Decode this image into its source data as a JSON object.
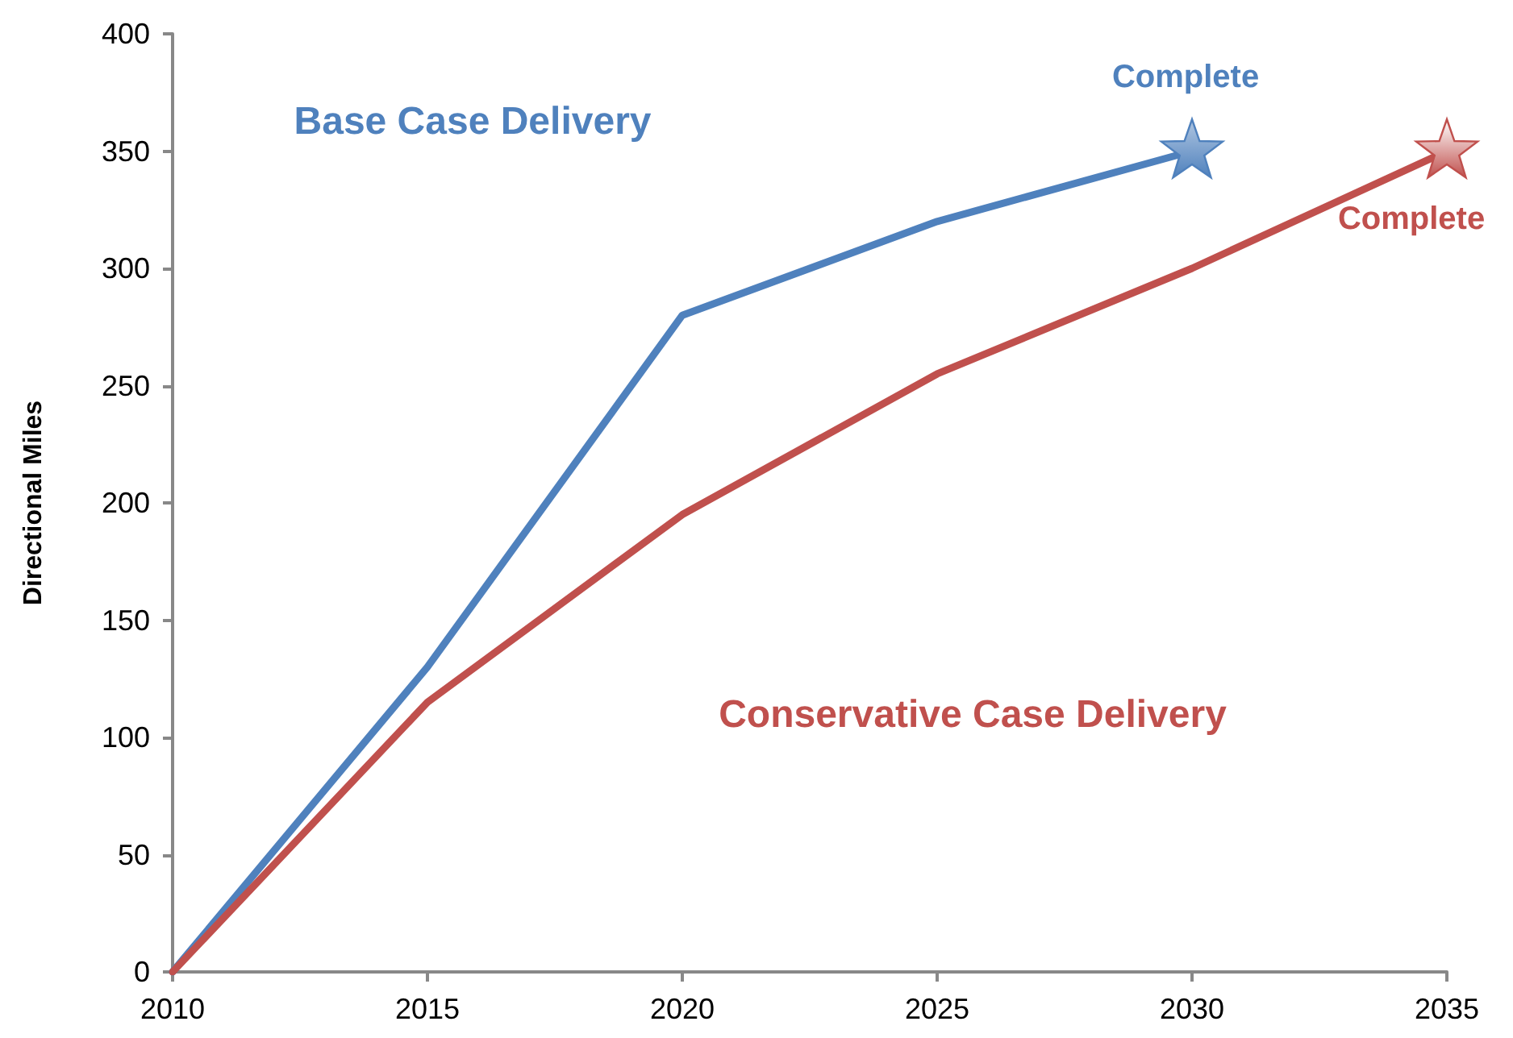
{
  "chart_data": {
    "type": "line",
    "ylabel": "Directional Miles",
    "x": [
      2010,
      2015,
      2020,
      2025,
      2030,
      2035
    ],
    "series": [
      {
        "name": "Base Case Delivery",
        "color": "#4f81bd",
        "values": [
          0,
          130,
          280,
          320,
          350,
          null
        ]
      },
      {
        "name": "Conservative Case Delivery",
        "color": "#c0504d",
        "values": [
          0,
          115,
          195,
          255,
          300,
          350
        ]
      }
    ],
    "annotations": [
      {
        "text": "Complete",
        "x": 2030,
        "y": 350
      },
      {
        "text": "Complete",
        "x": 2035,
        "y": 350
      }
    ],
    "xlim": [
      2010,
      2035
    ],
    "xticks": [
      2010,
      2015,
      2020,
      2025,
      2030,
      2035
    ],
    "ylim": [
      0,
      400
    ],
    "yticks": [
      0,
      50,
      100,
      150,
      200,
      250,
      300,
      350,
      400
    ],
    "grid": false,
    "legend": false,
    "line_style": "solid"
  }
}
